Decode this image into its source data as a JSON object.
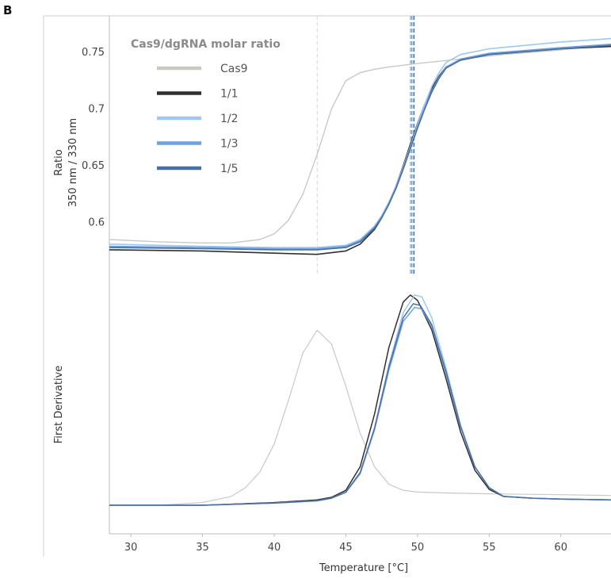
{
  "panel_letter": "B",
  "chart_data": [
    {
      "type": "line",
      "title": "",
      "xlabel": "",
      "ylabel": "Ratio\n350 nm / 330 nm",
      "xlim": [
        28.5,
        63.5
      ],
      "ylim": [
        0.555,
        0.775
      ],
      "yticks": [
        0.6,
        0.65,
        0.7,
        0.75
      ],
      "grid": false,
      "legend": {
        "title": "Cas9/dgRNA molar ratio",
        "position": "top-left",
        "entries": [
          "Cas9",
          "1/1",
          "1/2",
          "1/3",
          "1/5"
        ]
      },
      "vlines": [
        43.0,
        49.5,
        49.6,
        49.75
      ],
      "series": [
        {
          "name": "Cas9",
          "color": "#c9c9c3",
          "x": [
            28.5,
            32,
            35,
            37,
            39,
            40,
            41,
            42,
            43,
            44,
            45,
            46,
            47,
            48,
            50,
            53,
            56,
            60,
            63.5
          ],
          "y": [
            0.585,
            0.583,
            0.582,
            0.582,
            0.585,
            0.59,
            0.602,
            0.625,
            0.66,
            0.7,
            0.725,
            0.732,
            0.735,
            0.737,
            0.74,
            0.744,
            0.748,
            0.752,
            0.757
          ]
        },
        {
          "name": "1/1",
          "color": "#303030",
          "x": [
            28.5,
            35,
            40,
            43,
            45,
            46,
            47,
            47.5,
            48,
            48.5,
            49,
            49.5,
            50,
            50.5,
            51,
            51.5,
            52,
            53,
            55,
            60,
            63.5
          ],
          "y": [
            0.576,
            0.575,
            0.573,
            0.572,
            0.575,
            0.581,
            0.594,
            0.604,
            0.617,
            0.632,
            0.65,
            0.669,
            0.687,
            0.704,
            0.718,
            0.729,
            0.737,
            0.743,
            0.748,
            0.753,
            0.755
          ]
        },
        {
          "name": "1/2",
          "color": "#9cc8f2",
          "x": [
            28.5,
            35,
            40,
            43,
            45,
            46,
            47,
            47.5,
            48,
            48.5,
            49,
            49.5,
            50,
            50.5,
            51,
            51.5,
            52,
            53,
            55,
            60,
            63.5
          ],
          "y": [
            0.581,
            0.579,
            0.578,
            0.578,
            0.58,
            0.585,
            0.597,
            0.606,
            0.618,
            0.632,
            0.649,
            0.667,
            0.686,
            0.704,
            0.72,
            0.732,
            0.741,
            0.748,
            0.753,
            0.759,
            0.762
          ]
        },
        {
          "name": "1/3",
          "color": "#6fa3dc",
          "x": [
            28.5,
            35,
            40,
            43,
            45,
            46,
            47,
            47.5,
            48,
            48.5,
            49,
            49.5,
            50,
            50.5,
            51,
            51.5,
            52,
            53,
            55,
            60,
            63.5
          ],
          "y": [
            0.579,
            0.578,
            0.577,
            0.577,
            0.579,
            0.584,
            0.596,
            0.605,
            0.617,
            0.631,
            0.648,
            0.666,
            0.684,
            0.701,
            0.716,
            0.728,
            0.737,
            0.744,
            0.749,
            0.754,
            0.757
          ]
        },
        {
          "name": "1/5",
          "color": "#4a6fa5",
          "x": [
            28.5,
            35,
            40,
            43,
            45,
            46,
            47,
            47.5,
            48,
            48.5,
            49,
            49.5,
            50,
            50.5,
            51,
            51.5,
            52,
            53,
            55,
            60,
            63.5
          ],
          "y": [
            0.578,
            0.577,
            0.576,
            0.576,
            0.578,
            0.583,
            0.595,
            0.604,
            0.616,
            0.63,
            0.647,
            0.665,
            0.683,
            0.7,
            0.715,
            0.727,
            0.736,
            0.743,
            0.748,
            0.753,
            0.756
          ]
        }
      ]
    },
    {
      "type": "line",
      "title": "",
      "xlabel": "Temperature [°C]",
      "ylabel": "First Derivative",
      "xlim": [
        28.5,
        63.5
      ],
      "xticks": [
        30,
        35,
        40,
        45,
        50,
        55,
        60
      ],
      "ylim": [
        -0.05,
        1.2
      ],
      "grid": false,
      "series": [
        {
          "name": "Cas9",
          "color": "#c9c9c3",
          "x": [
            28.5,
            32,
            35,
            37,
            38,
            39,
            40,
            41,
            42,
            43,
            44,
            45,
            46,
            47,
            48,
            49,
            50,
            52,
            55,
            60,
            63.5
          ],
          "y": [
            0.0,
            0.0,
            0.015,
            0.05,
            0.1,
            0.19,
            0.35,
            0.6,
            0.87,
            1.0,
            0.92,
            0.68,
            0.41,
            0.22,
            0.12,
            0.085,
            0.075,
            0.07,
            0.065,
            0.06,
            0.055
          ]
        },
        {
          "name": "1/1",
          "color": "#303030",
          "x": [
            28.5,
            35,
            40,
            43,
            44,
            45,
            46,
            47,
            48,
            49,
            49.5,
            50,
            51,
            52,
            53,
            54,
            55,
            56,
            58,
            60,
            63.5
          ],
          "y": [
            0.0,
            0.0,
            0.015,
            0.03,
            0.045,
            0.085,
            0.22,
            0.52,
            0.9,
            1.16,
            1.2,
            1.17,
            1.0,
            0.72,
            0.42,
            0.2,
            0.09,
            0.05,
            0.04,
            0.035,
            0.03
          ]
        },
        {
          "name": "1/2",
          "color": "#9cc8f2",
          "x": [
            28.5,
            35,
            40,
            43,
            44,
            45,
            46,
            47,
            48,
            49,
            49.8,
            50.3,
            51,
            52,
            53,
            54,
            55,
            56,
            58,
            60,
            63.5
          ],
          "y": [
            0.0,
            0.0,
            0.012,
            0.025,
            0.04,
            0.075,
            0.19,
            0.44,
            0.8,
            1.1,
            1.2,
            1.19,
            1.07,
            0.78,
            0.46,
            0.22,
            0.1,
            0.05,
            0.04,
            0.035,
            0.03
          ]
        },
        {
          "name": "1/3",
          "color": "#6fa3dc",
          "x": [
            28.5,
            35,
            40,
            43,
            44,
            45,
            46,
            47,
            48,
            49,
            49.8,
            50.3,
            51,
            52,
            53,
            54,
            55,
            56,
            58,
            60,
            63.5
          ],
          "y": [
            0.0,
            0.0,
            0.012,
            0.025,
            0.04,
            0.073,
            0.18,
            0.43,
            0.77,
            1.05,
            1.13,
            1.12,
            1.02,
            0.75,
            0.45,
            0.22,
            0.1,
            0.05,
            0.04,
            0.035,
            0.03
          ]
        },
        {
          "name": "1/5",
          "color": "#4a6fa5",
          "x": [
            28.5,
            35,
            40,
            43,
            44,
            45,
            46,
            47,
            48,
            49,
            49.7,
            50.2,
            51,
            52,
            53,
            54,
            55,
            56,
            58,
            60,
            63.5
          ],
          "y": [
            0.0,
            0.0,
            0.012,
            0.025,
            0.04,
            0.074,
            0.185,
            0.44,
            0.79,
            1.07,
            1.15,
            1.14,
            1.03,
            0.76,
            0.45,
            0.22,
            0.1,
            0.05,
            0.04,
            0.035,
            0.03
          ]
        }
      ]
    }
  ]
}
